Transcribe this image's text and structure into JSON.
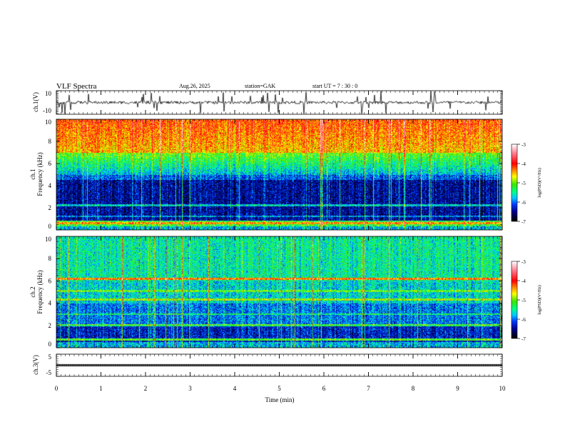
{
  "header": {
    "title": "VLF  Spectra",
    "date": "Aug.26, 2025",
    "station": "station=GAK",
    "start_ut": "start  UT  =   7  : 30 : 0"
  },
  "chart_data": [
    {
      "type": "line",
      "name": "ch1-waveform",
      "ylabel": "ch.1(V)",
      "ylim": [
        -10,
        10
      ],
      "yticks": [
        "10",
        "-10"
      ],
      "xlim": [
        0,
        10
      ]
    },
    {
      "type": "heatmap",
      "name": "ch1-spectrogram",
      "ylabel_channel": "ch.1",
      "ylabel": "Frequency  (kHz)",
      "ylim": [
        0,
        10
      ],
      "yticks": [
        "0",
        "2",
        "4",
        "6",
        "8",
        "10"
      ],
      "xlim": [
        0,
        10
      ],
      "colorbar": {
        "label": "log(PSD)(V²/Hz)",
        "range": [
          -7,
          -3
        ],
        "ticks": [
          "-3",
          "-4",
          "-5",
          "-6",
          "-7"
        ]
      }
    },
    {
      "type": "heatmap",
      "name": "ch2-spectrogram",
      "ylabel_channel": "ch.2",
      "ylabel": "Frequency  (kHz)",
      "ylim": [
        0,
        10
      ],
      "yticks": [
        "0",
        "2",
        "4",
        "6",
        "8",
        "10"
      ],
      "xlim": [
        0,
        10
      ],
      "colorbar": {
        "label": "log(PSD)(V²/Hz)",
        "range": [
          -7,
          -3
        ],
        "ticks": [
          "-3",
          "-4",
          "-5",
          "-6",
          "-7"
        ]
      }
    },
    {
      "type": "line",
      "name": "ch3-waveform",
      "ylabel": "ch.3(V)",
      "ylim": [
        -5,
        5
      ],
      "yticks": [
        "5",
        "-5"
      ],
      "xlim": [
        0,
        10
      ],
      "level": 0
    }
  ],
  "xaxis": {
    "label": "Time  (min)",
    "ticks": [
      "0",
      "1",
      "2",
      "3",
      "4",
      "5",
      "6",
      "7",
      "8",
      "9",
      "10"
    ],
    "range": [
      0,
      10
    ]
  }
}
